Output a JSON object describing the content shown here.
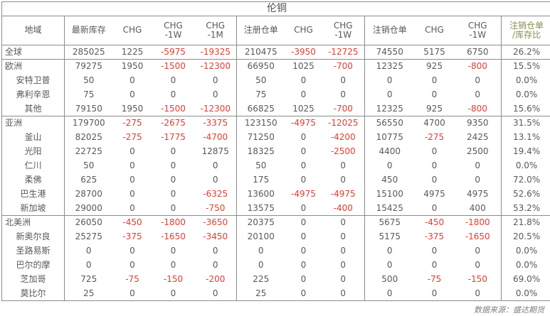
{
  "colors": {
    "text": "#595959",
    "negative": "#e23d32",
    "border": "#8c8c8c",
    "title": "#4d4d4d",
    "ratio_header": "#8c8c55",
    "footer": "#808080",
    "bg": "#ffffff"
  },
  "chart_data": {
    "type": "table",
    "title": "伦铜",
    "columns": [
      {
        "line1": "地域",
        "line2": ""
      },
      {
        "line1": "最新库存",
        "line2": ""
      },
      {
        "line1": "CHG",
        "line2": ""
      },
      {
        "line1": "CHG",
        "line2": "-1W"
      },
      {
        "line1": "CHG",
        "line2": "-1M"
      },
      {
        "line1": "注册仓单",
        "line2": ""
      },
      {
        "line1": "CHG",
        "line2": ""
      },
      {
        "line1": "CHG",
        "line2": "-1W"
      },
      {
        "line1": "注销仓单",
        "line2": ""
      },
      {
        "line1": "CHG",
        "line2": ""
      },
      {
        "line1": "CHG",
        "line2": "-1W"
      },
      {
        "line1": "注销仓单",
        "line2": "/库存比"
      }
    ],
    "rows": [
      {
        "name": "全球",
        "level": "region",
        "section_start": false,
        "values": [
          "285025",
          "1225",
          "-5975",
          "-19325",
          "210475",
          "-3950",
          "-12725",
          "74550",
          "5175",
          "6750",
          "26.2%"
        ]
      },
      {
        "name": "欧洲",
        "level": "region",
        "section_start": true,
        "values": [
          "79275",
          "1950",
          "-1500",
          "-12300",
          "66950",
          "1025",
          "-700",
          "12325",
          "925",
          "-800",
          "15.5%"
        ]
      },
      {
        "name": "安特卫普",
        "level": "city",
        "section_start": false,
        "values": [
          "50",
          "0",
          "0",
          "0",
          "50",
          "0",
          "0",
          "0",
          "0",
          "0",
          "0.0%"
        ]
      },
      {
        "name": "弗利辛恩",
        "level": "city",
        "section_start": false,
        "values": [
          "75",
          "0",
          "0",
          "0",
          "75",
          "0",
          "0",
          "0",
          "0",
          "0",
          "0.0%"
        ]
      },
      {
        "name": "其他",
        "level": "city",
        "section_start": false,
        "values": [
          "79150",
          "1950",
          "-1500",
          "-12300",
          "66825",
          "1025",
          "-700",
          "12325",
          "925",
          "-800",
          "15.6%"
        ]
      },
      {
        "name": "亚洲",
        "level": "region",
        "section_start": true,
        "values": [
          "179700",
          "-275",
          "-2675",
          "-3375",
          "123150",
          "-4975",
          "-12025",
          "56550",
          "4700",
          "9350",
          "31.5%"
        ]
      },
      {
        "name": "釜山",
        "level": "city",
        "section_start": false,
        "values": [
          "82025",
          "-275",
          "-1775",
          "-4700",
          "71250",
          "0",
          "-4200",
          "10775",
          "-275",
          "2425",
          "13.1%"
        ]
      },
      {
        "name": "光阳",
        "level": "city",
        "section_start": false,
        "values": [
          "22725",
          "0",
          "0",
          "12875",
          "18325",
          "0",
          "-2500",
          "4400",
          "0",
          "2500",
          "19.4%"
        ]
      },
      {
        "name": "仁川",
        "level": "city",
        "section_start": false,
        "values": [
          "50",
          "0",
          "0",
          "0",
          "50",
          "0",
          "0",
          "0",
          "0",
          "0",
          "0.0%"
        ]
      },
      {
        "name": "柔佛",
        "level": "city",
        "section_start": false,
        "values": [
          "625",
          "0",
          "0",
          "0",
          "175",
          "0",
          "0",
          "450",
          "0",
          "0",
          "72.0%"
        ]
      },
      {
        "name": "巴生港",
        "level": "city",
        "section_start": false,
        "values": [
          "28700",
          "0",
          "0",
          "-6325",
          "13600",
          "-4975",
          "-4975",
          "15100",
          "4975",
          "4975",
          "52.6%"
        ]
      },
      {
        "name": "新加坡",
        "level": "city",
        "section_start": false,
        "values": [
          "29000",
          "0",
          "0",
          "-750",
          "13575",
          "0",
          "-400",
          "15425",
          "0",
          "400",
          "53.2%"
        ]
      },
      {
        "name": "北美洲",
        "level": "region",
        "section_start": true,
        "values": [
          "26050",
          "-450",
          "-1800",
          "-3650",
          "20375",
          "0",
          "0",
          "5675",
          "-450",
          "-1800",
          "21.8%"
        ]
      },
      {
        "name": "新奥尔良",
        "level": "city",
        "section_start": false,
        "values": [
          "25275",
          "-375",
          "-1650",
          "-3450",
          "20100",
          "0",
          "0",
          "5175",
          "-375",
          "-1650",
          "20.5%"
        ]
      },
      {
        "name": "圣路易斯",
        "level": "city",
        "section_start": false,
        "values": [
          "0",
          "0",
          "0",
          "0",
          "0",
          "0",
          "0",
          "0",
          "0",
          "0",
          "0.0%"
        ]
      },
      {
        "name": "巴尔的摩",
        "level": "city",
        "section_start": false,
        "values": [
          "0",
          "0",
          "0",
          "0",
          "0",
          "0",
          "0",
          "0",
          "0",
          "0",
          "0.0%"
        ]
      },
      {
        "name": "芝加哥",
        "level": "city",
        "section_start": false,
        "values": [
          "725",
          "-75",
          "-150",
          "-200",
          "225",
          "0",
          "0",
          "500",
          "-75",
          "-150",
          "69.0%"
        ]
      },
      {
        "name": "莫比尔",
        "level": "city",
        "section_start": false,
        "values": [
          "25",
          "0",
          "0",
          "0",
          "25",
          "0",
          "0",
          "0",
          "0",
          "0",
          "0.0%"
        ]
      }
    ],
    "footer_source": "数据来源：盛达期货"
  }
}
